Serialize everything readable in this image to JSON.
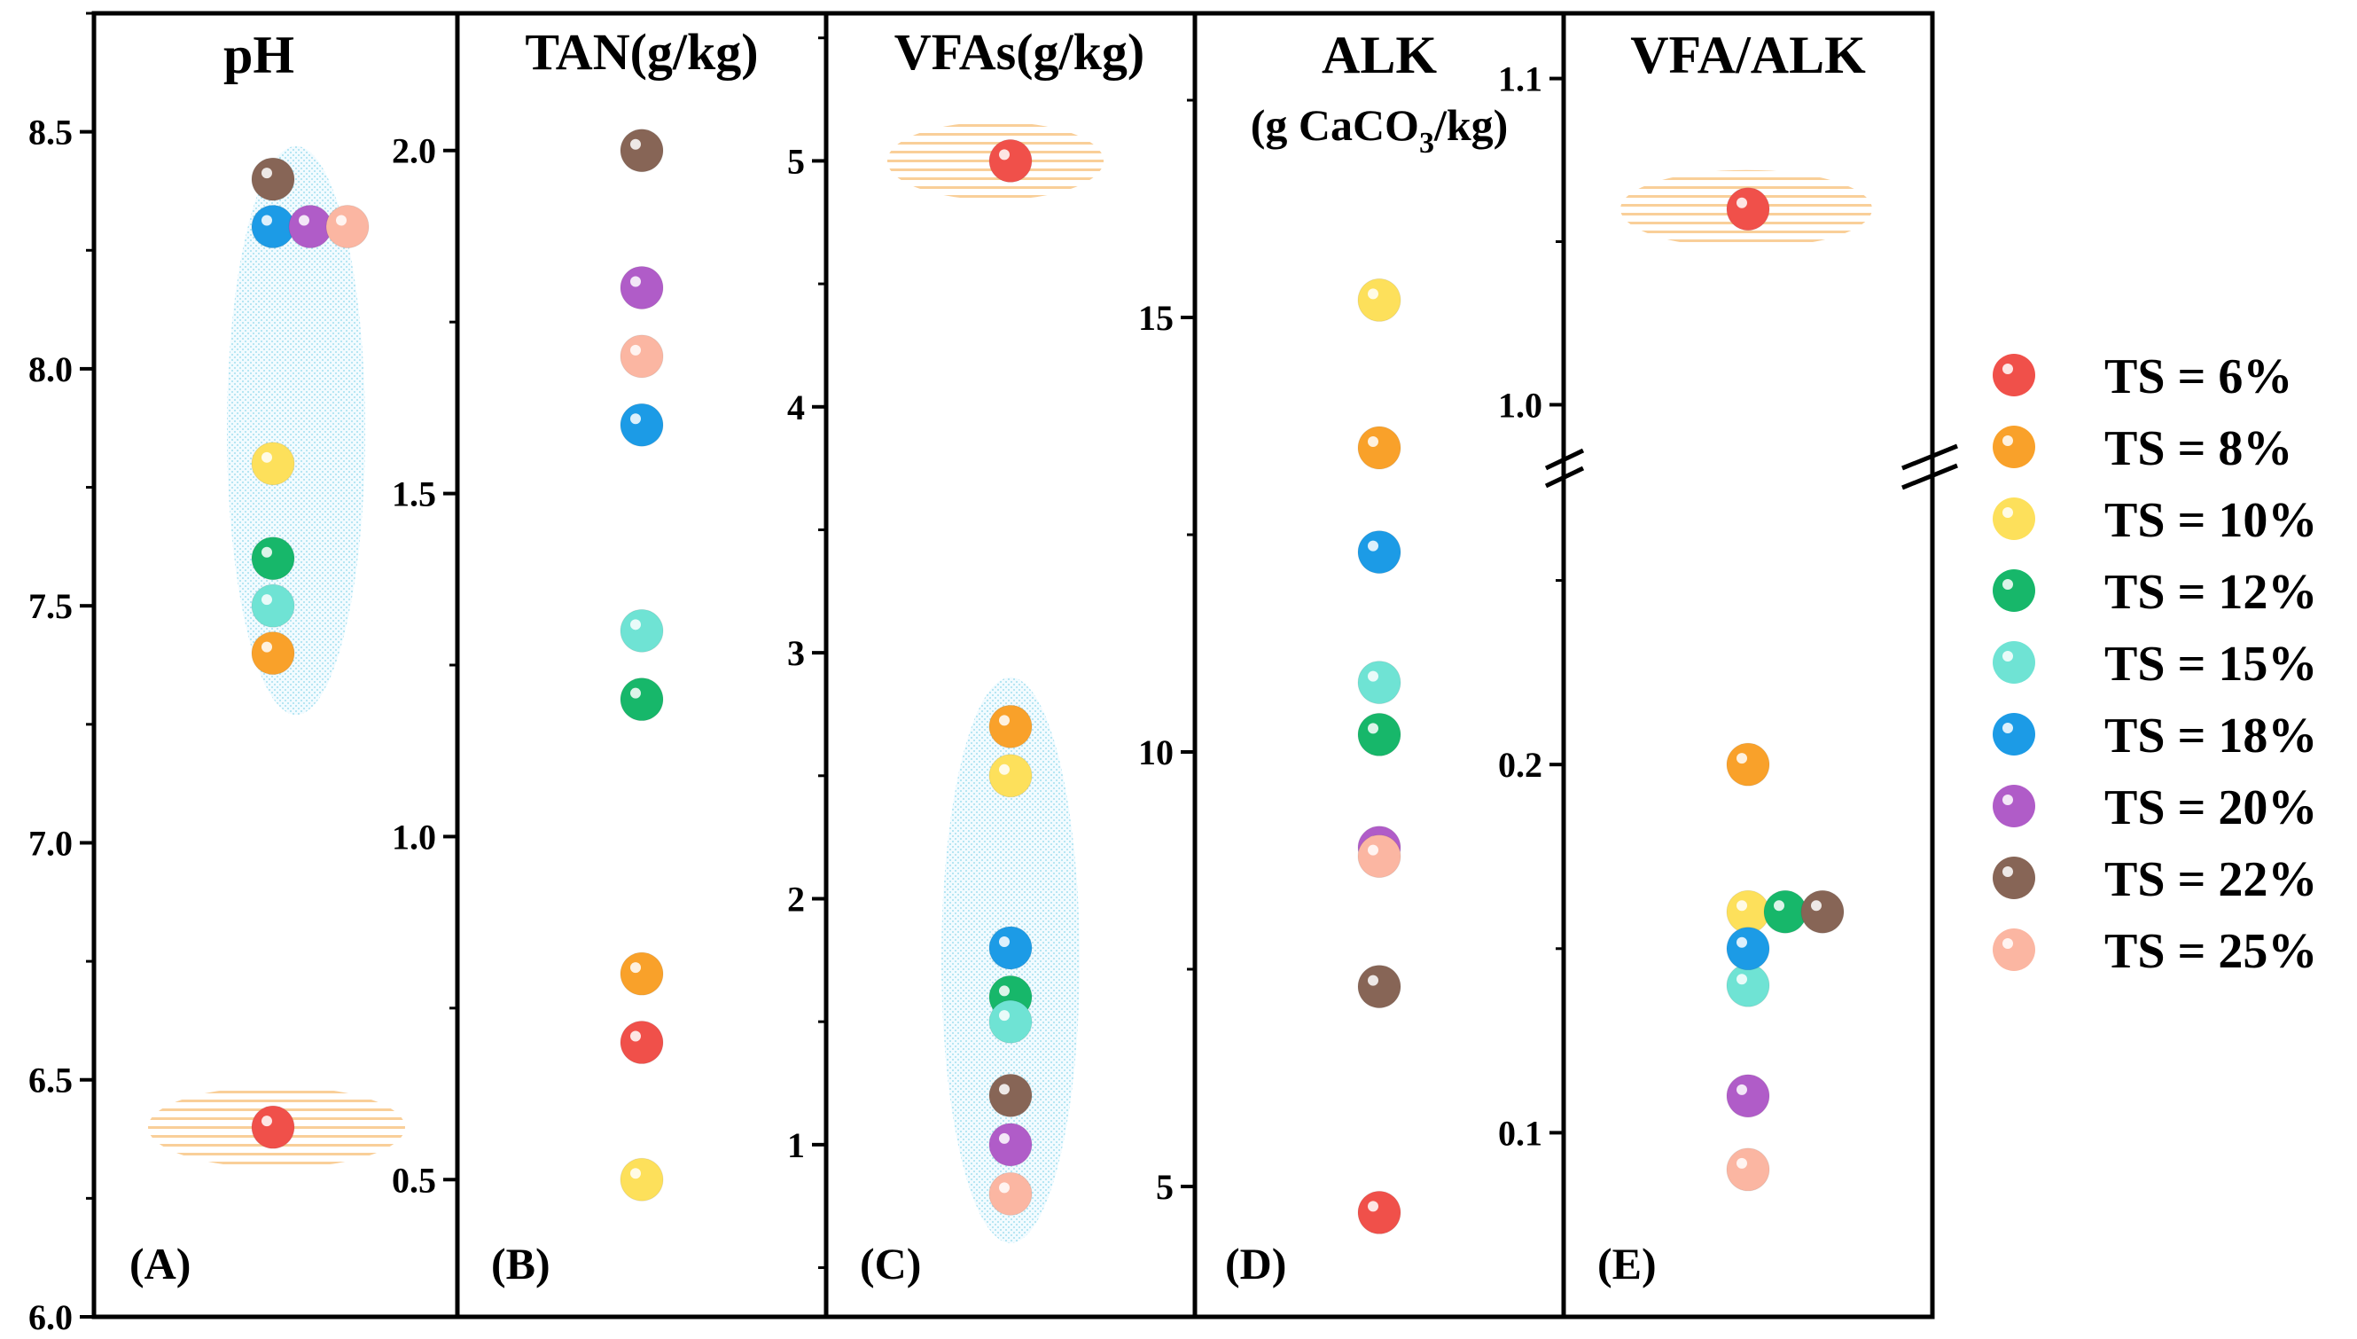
{
  "chart_data": [
    {
      "type": "scatter",
      "panel": "(A)",
      "title": "pH",
      "ylim": [
        6.0,
        8.75
      ],
      "yticks": [
        6.0,
        6.5,
        7.0,
        7.5,
        8.0,
        8.5
      ],
      "ytick_labels": [
        "6.0",
        "6.5",
        "7.0",
        "7.5",
        "8.0",
        "8.5"
      ],
      "points": [
        {
          "series": "TS = 6%",
          "x": 0,
          "y": 6.4
        },
        {
          "series": "TS = 8%",
          "x": 0,
          "y": 7.4
        },
        {
          "series": "TS = 10%",
          "x": 0,
          "y": 7.8
        },
        {
          "series": "TS = 12%",
          "x": 0,
          "y": 7.6
        },
        {
          "series": "TS = 15%",
          "x": 0,
          "y": 7.5
        },
        {
          "series": "TS = 18%",
          "x": 0,
          "y": 8.3
        },
        {
          "series": "TS = 20%",
          "x": 1,
          "y": 8.3
        },
        {
          "series": "TS = 22%",
          "x": 0,
          "y": 8.4
        },
        {
          "series": "TS = 25%",
          "x": 2,
          "y": 8.3
        }
      ]
    },
    {
      "type": "scatter",
      "panel": "(B)",
      "title": "TAN(g/kg)",
      "ylim": [
        0.3,
        2.2
      ],
      "yticks": [
        0.5,
        1.0,
        1.5,
        2.0
      ],
      "ytick_labels": [
        "0.5",
        "1.0",
        "1.5",
        "2.0"
      ],
      "points": [
        {
          "series": "TS = 6%",
          "x": 0,
          "y": 0.7
        },
        {
          "series": "TS = 8%",
          "x": 0,
          "y": 0.8
        },
        {
          "series": "TS = 10%",
          "x": 0,
          "y": 0.5
        },
        {
          "series": "TS = 12%",
          "x": 0,
          "y": 1.2
        },
        {
          "series": "TS = 15%",
          "x": 0,
          "y": 1.3
        },
        {
          "series": "TS = 18%",
          "x": 0,
          "y": 1.6
        },
        {
          "series": "TS = 20%",
          "x": 0,
          "y": 1.8
        },
        {
          "series": "TS = 22%",
          "x": 0,
          "y": 2.0
        },
        {
          "series": "TS = 25%",
          "x": 0,
          "y": 1.7
        }
      ]
    },
    {
      "type": "scatter",
      "panel": "(C)",
      "title": "VFAs(g/kg)",
      "ylim": [
        0.3,
        5.6
      ],
      "yticks": [
        1,
        2,
        3,
        4,
        5
      ],
      "ytick_labels": [
        "1",
        "2",
        "3",
        "4",
        "5"
      ],
      "points": [
        {
          "series": "TS = 6%",
          "x": 0,
          "y": 5.0
        },
        {
          "series": "TS = 8%",
          "x": 0,
          "y": 2.7
        },
        {
          "series": "TS = 10%",
          "x": 0,
          "y": 2.5
        },
        {
          "series": "TS = 12%",
          "x": 0,
          "y": 1.6
        },
        {
          "series": "TS = 15%",
          "x": 0,
          "y": 1.5
        },
        {
          "series": "TS = 18%",
          "x": 0,
          "y": 1.8
        },
        {
          "series": "TS = 20%",
          "x": 0,
          "y": 1.0
        },
        {
          "series": "TS = 22%",
          "x": 0,
          "y": 1.2
        },
        {
          "series": "TS = 25%",
          "x": 0,
          "y": 0.8
        }
      ]
    },
    {
      "type": "scatter",
      "panel": "(D)",
      "title": "ALK",
      "subtitle_main": "(g CaCO",
      "subtitle_sub": "3",
      "subtitle_end": "/kg)",
      "ylim": [
        3.5,
        18.5
      ],
      "yticks": [
        5,
        10,
        15
      ],
      "ytick_labels": [
        "5",
        "10",
        "15"
      ],
      "points": [
        {
          "series": "TS = 6%",
          "x": 0,
          "y": 4.7
        },
        {
          "series": "TS = 8%",
          "x": 0,
          "y": 13.5
        },
        {
          "series": "TS = 10%",
          "x": 0,
          "y": 15.2
        },
        {
          "series": "TS = 12%",
          "x": 0,
          "y": 10.2
        },
        {
          "series": "TS = 15%",
          "x": 0,
          "y": 10.8
        },
        {
          "series": "TS = 18%",
          "x": 0,
          "y": 12.3
        },
        {
          "series": "TS = 20%",
          "x": 0,
          "y": 8.9
        },
        {
          "series": "TS = 22%",
          "x": 0,
          "y": 7.3
        },
        {
          "series": "TS = 25%",
          "x": 0,
          "y": 8.8
        }
      ]
    },
    {
      "type": "scatter",
      "panel": "(E)",
      "title": "VFA/ALK",
      "broken_axis": true,
      "ylim_lower": [
        0.05,
        0.28
      ],
      "ylim_upper": [
        0.98,
        1.12
      ],
      "yticks": [
        0.1,
        0.2,
        1.0,
        1.1
      ],
      "ytick_labels": [
        "0.1",
        "0.2",
        "1.0",
        "1.1"
      ],
      "points": [
        {
          "series": "TS = 6%",
          "x": 0,
          "y": 1.06
        },
        {
          "series": "TS = 8%",
          "x": 0,
          "y": 0.2
        },
        {
          "series": "TS = 10%",
          "x": 0,
          "y": 0.16
        },
        {
          "series": "TS = 12%",
          "x": 1,
          "y": 0.16
        },
        {
          "series": "TS = 15%",
          "x": 0,
          "y": 0.14
        },
        {
          "series": "TS = 18%",
          "x": 0,
          "y": 0.15
        },
        {
          "series": "TS = 20%",
          "x": 0,
          "y": 0.11
        },
        {
          "series": "TS = 22%",
          "x": 2,
          "y": 0.16
        },
        {
          "series": "TS = 25%",
          "x": 0,
          "y": 0.09
        }
      ]
    }
  ],
  "legend": [
    {
      "label": "TS = 6%",
      "color": "#f0504a"
    },
    {
      "label": "TS = 8%",
      "color": "#f9a12a"
    },
    {
      "label": "TS = 10%",
      "color": "#fde05b"
    },
    {
      "label": "TS = 12%",
      "color": "#17b76a"
    },
    {
      "label": "TS = 15%",
      "color": "#6fe3d4"
    },
    {
      "label": "TS = 18%",
      "color": "#1c9be6"
    },
    {
      "label": "TS = 20%",
      "color": "#b05cc8"
    },
    {
      "label": "TS = 22%",
      "color": "#876556"
    },
    {
      "label": "TS = 25%",
      "color": "#fbb6a2"
    }
  ]
}
